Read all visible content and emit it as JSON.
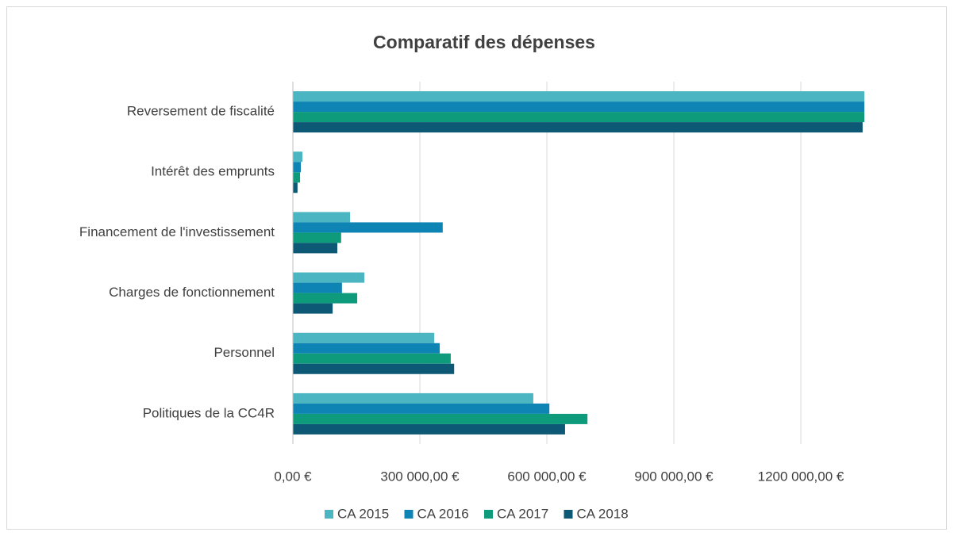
{
  "chart_data": {
    "type": "hbar",
    "title": "Comparatif des dépenses",
    "categories": [
      "Reversement de fiscalité",
      "Intérêt des emprunts",
      "Financement de l'investissement",
      "Charges de fonctionnement",
      "Personnel",
      "Politiques de la CC4R"
    ],
    "series": [
      {
        "name": "CA 2015",
        "color": "#4bb5c1",
        "values": [
          1350000,
          22500,
          135000,
          169000,
          334000,
          568000
        ]
      },
      {
        "name": "CA 2016",
        "color": "#0e84b5",
        "values": [
          1350000,
          18750,
          354000,
          116000,
          347000,
          606000
        ]
      },
      {
        "name": "CA 2017",
        "color": "#0e9b7c",
        "values": [
          1350000,
          17000,
          114000,
          152000,
          373000,
          696000
        ]
      },
      {
        "name": "CA 2018",
        "color": "#0d5874",
        "values": [
          1346000,
          11000,
          105000,
          94000,
          381000,
          643000
        ]
      }
    ],
    "xlim": [
      0,
      1350000
    ],
    "xticks": [
      {
        "value": 0,
        "label": "0,00 €"
      },
      {
        "value": 300000,
        "label": "300 000,00 €"
      },
      {
        "value": 600000,
        "label": "600 000,00 €"
      },
      {
        "value": 900000,
        "label": "900 000,00 €"
      },
      {
        "value": 1200000,
        "label": "1200 000,00 €"
      }
    ],
    "grid": true,
    "legend": "bottom"
  }
}
